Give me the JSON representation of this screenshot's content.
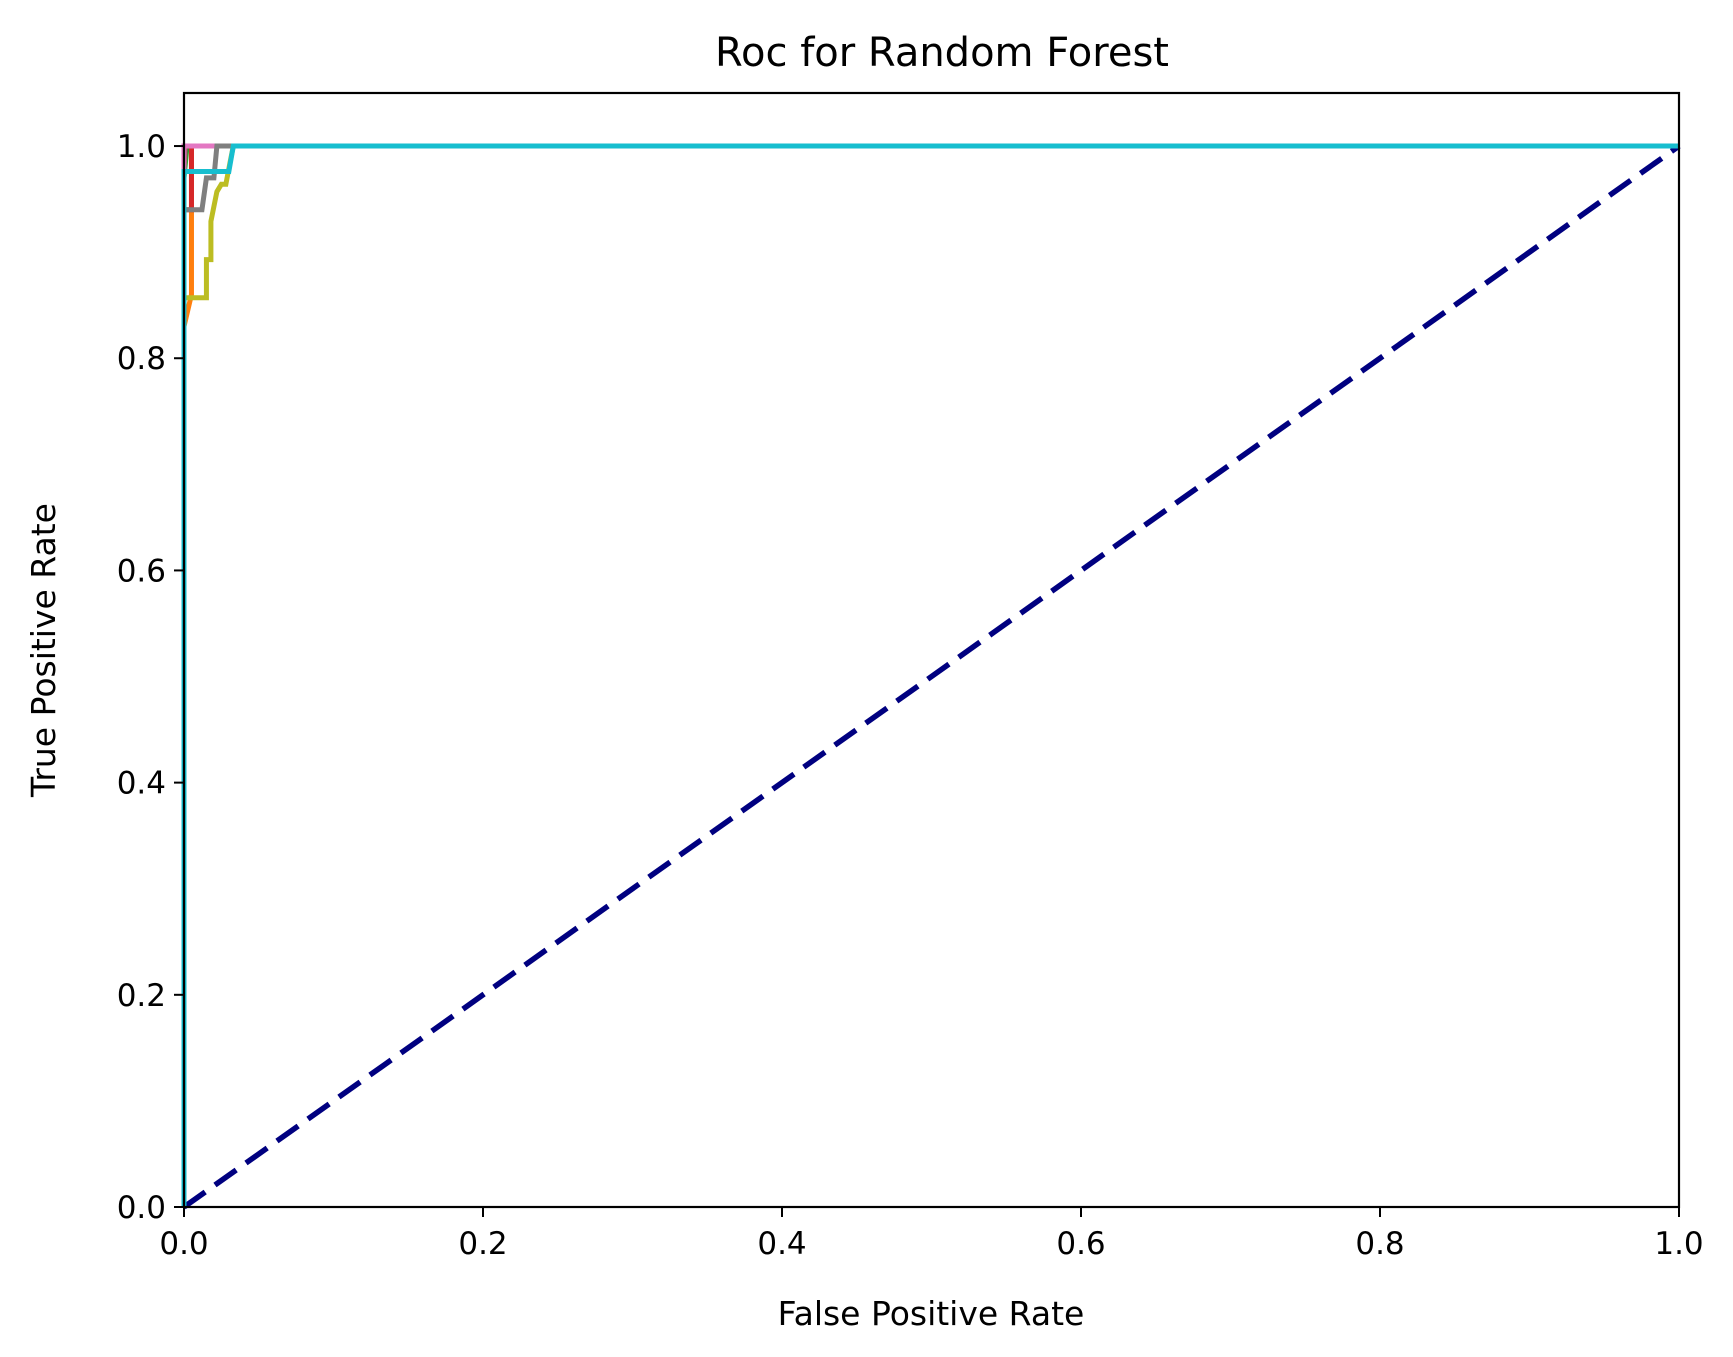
{
  "chart_data": {
    "type": "line",
    "title": "Roc for Random Forest",
    "xlabel": "False Positive Rate",
    "ylabel": "True Positive Rate",
    "xlim": [
      0.0,
      1.0
    ],
    "ylim": [
      0.0,
      1.05
    ],
    "x_ticks": [
      "0.0",
      "0.2",
      "0.4",
      "0.6",
      "0.8",
      "1.0"
    ],
    "y_ticks": [
      "0.0",
      "0.2",
      "0.4",
      "0.6",
      "0.8",
      "1.0"
    ],
    "grid": false,
    "legend": "none",
    "series": [
      {
        "color": "#1f77b4",
        "points": [
          [
            0,
            0
          ],
          [
            0,
            0.98
          ],
          [
            0,
            1
          ],
          [
            1,
            1
          ]
        ]
      },
      {
        "color": "#ff7f0e",
        "points": [
          [
            0,
            0
          ],
          [
            0,
            0.83
          ],
          [
            0.005,
            0.86
          ],
          [
            0.005,
            1
          ],
          [
            1,
            1
          ]
        ]
      },
      {
        "color": "#2ca02c",
        "points": [
          [
            0,
            0
          ],
          [
            0,
            0.97
          ],
          [
            0.002,
            1
          ],
          [
            1,
            1
          ]
        ]
      },
      {
        "color": "#d62728",
        "points": [
          [
            0,
            0
          ],
          [
            0,
            0.94
          ],
          [
            0.005,
            0.94
          ],
          [
            0.005,
            1
          ],
          [
            1,
            1
          ]
        ]
      },
      {
        "color": "#9467bd",
        "points": [
          [
            0,
            0
          ],
          [
            0,
            0.99
          ],
          [
            0,
            1
          ],
          [
            1,
            1
          ]
        ]
      },
      {
        "color": "#8c564b",
        "points": [
          [
            0,
            0
          ],
          [
            0,
            0.98
          ],
          [
            0.001,
            1
          ],
          [
            1,
            1
          ]
        ]
      },
      {
        "color": "#e377c2",
        "points": [
          [
            0,
            0
          ],
          [
            0,
            1
          ],
          [
            1,
            1
          ]
        ]
      },
      {
        "color": "#7f7f7f",
        "points": [
          [
            0,
            0
          ],
          [
            0,
            0.94
          ],
          [
            0.012,
            0.94
          ],
          [
            0.015,
            0.97
          ],
          [
            0.02,
            0.97
          ],
          [
            0.022,
            1
          ],
          [
            1,
            1
          ]
        ]
      },
      {
        "color": "#bcbd22",
        "points": [
          [
            0,
            0
          ],
          [
            0,
            0.857
          ],
          [
            0.015,
            0.857
          ],
          [
            0.015,
            0.893
          ],
          [
            0.018,
            0.893
          ],
          [
            0.018,
            0.929
          ],
          [
            0.02,
            0.943
          ],
          [
            0.022,
            0.957
          ],
          [
            0.025,
            0.964
          ],
          [
            0.028,
            0.964
          ],
          [
            0.031,
            0.986
          ],
          [
            0.033,
            1
          ],
          [
            1,
            1
          ]
        ]
      },
      {
        "color": "#17becf",
        "points": [
          [
            0,
            0
          ],
          [
            0,
            0.976
          ],
          [
            0.03,
            0.976
          ],
          [
            0.033,
            1
          ],
          [
            1,
            1
          ]
        ]
      }
    ],
    "chance_line": {
      "color": "#000080",
      "style": "dashed",
      "points": [
        [
          0,
          0
        ],
        [
          1,
          1
        ]
      ]
    }
  }
}
